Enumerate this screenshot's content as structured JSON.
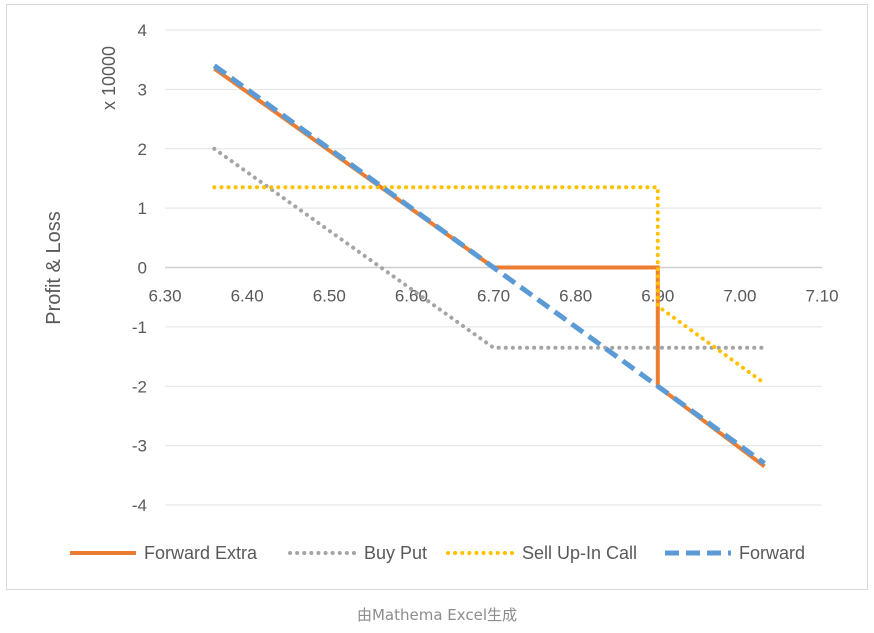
{
  "chart_data": {
    "type": "line",
    "title": "",
    "xlabel": "",
    "ylabel": "Profit & Loss",
    "y_multiplier_label": "x 10000",
    "xlim": [
      6.3,
      7.1
    ],
    "ylim": [
      -4,
      4
    ],
    "x_ticks": [
      "6.30",
      "6.40",
      "6.50",
      "6.60",
      "6.70",
      "6.80",
      "6.90",
      "7.00",
      "7.10"
    ],
    "y_ticks": [
      "4",
      "3",
      "2",
      "1",
      "0",
      "-1",
      "-2",
      "-3",
      "-4"
    ],
    "grid": true,
    "legend_position": "bottom",
    "series": [
      {
        "name": "Forward Extra",
        "color": "#ED7D31",
        "style": "solid",
        "x": [
          6.36,
          6.7,
          6.9,
          6.9,
          7.03
        ],
        "y": [
          3.35,
          0.0,
          0.0,
          -2.0,
          -3.35
        ]
      },
      {
        "name": "Buy Put",
        "color": "#A5A5A5",
        "style": "dotted",
        "x": [
          6.36,
          6.7,
          7.03
        ],
        "y": [
          2.0,
          -1.35,
          -1.35
        ]
      },
      {
        "name": "Sell Up-In Call",
        "color": "#FFC000",
        "style": "dotted",
        "x": [
          6.36,
          6.9,
          6.9,
          7.03
        ],
        "y": [
          1.35,
          1.35,
          -0.65,
          -1.95
        ]
      },
      {
        "name": "Forward",
        "color": "#5B9BD5",
        "style": "dashed",
        "x": [
          6.36,
          7.03
        ],
        "y": [
          3.4,
          -3.3
        ]
      }
    ]
  },
  "caption": "由Mathema Excel生成"
}
